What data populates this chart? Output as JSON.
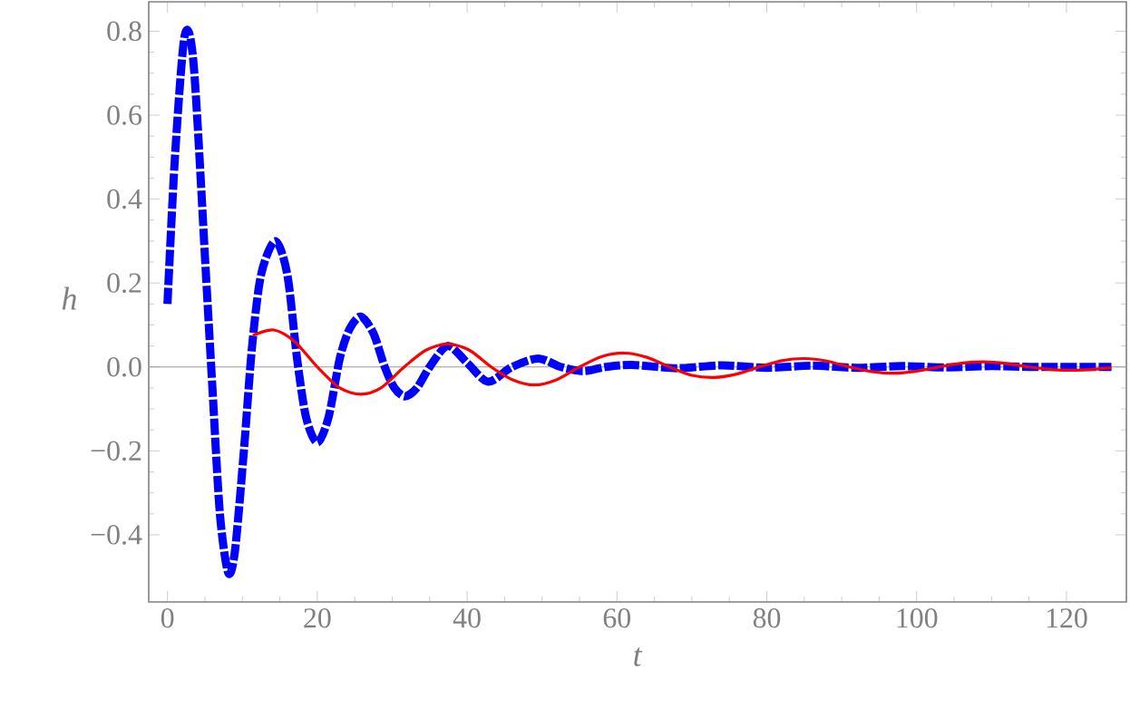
{
  "chart_data": {
    "type": "line",
    "xlabel": "*t*",
    "ylabel": "*h*",
    "xlim": [
      -2.5,
      128
    ],
    "ylim": [
      -0.56,
      0.87
    ],
    "xticks": [
      0,
      20,
      40,
      60,
      80,
      100,
      120
    ],
    "yticks": [
      {
        "value": -0.4,
        "label": "−0.4"
      },
      {
        "value": -0.2,
        "label": "−0.2"
      },
      {
        "value": 0,
        "label": "0.0"
      },
      {
        "value": 0.2,
        "label": "0.2"
      },
      {
        "value": 0.4,
        "label": "0.4"
      },
      {
        "value": 0.6,
        "label": "0.6"
      },
      {
        "value": 0.8,
        "label": "0.8"
      }
    ],
    "ref_lines": [
      {
        "axis": "y",
        "value": 0,
        "color": "#999999"
      }
    ],
    "grid": false,
    "marker": "none",
    "series": [
      {
        "color": "#0000ff",
        "line_style": "dashed",
        "x": [
          0,
          1,
          2.3,
          3.5,
          5.2,
          6,
          7,
          8.1,
          9,
          10.2,
          11.3,
          12.5,
          14.4,
          16,
          17.3,
          18.5,
          20,
          21.5,
          23,
          24.3,
          25.8,
          27.5,
          29,
          30.3,
          31.7,
          33.3,
          35,
          37.4,
          40,
          42.8,
          46,
          49.5,
          52.5,
          55.5,
          58.5,
          62,
          68,
          74,
          80,
          86,
          92,
          98,
          104,
          110,
          116,
          126
        ],
        "values": [
          0.15,
          0.5,
          0.79,
          0.72,
          0.2,
          -0.05,
          -0.35,
          -0.49,
          -0.44,
          -0.2,
          0.05,
          0.22,
          0.3,
          0.22,
          0.02,
          -0.12,
          -0.18,
          -0.12,
          0.02,
          0.09,
          0.12,
          0.08,
          0,
          -0.05,
          -0.07,
          -0.05,
          0,
          0.05,
          0.01,
          -0.035,
          0,
          0.02,
          0,
          -0.01,
          0,
          0.005,
          -0.003,
          0.004,
          -0.002,
          0.003,
          -0.002,
          0.002,
          -0.001,
          0.002,
          0,
          0
        ]
      },
      {
        "color": "#ff0000",
        "line_style": "solid",
        "x": [
          11.4,
          14.2,
          17,
          20,
          23,
          25.8,
          28.5,
          31.6,
          34.5,
          37.4,
          40.3,
          43.2,
          46,
          49,
          52,
          55,
          58,
          61,
          64,
          67,
          70,
          73,
          76,
          79,
          82,
          85,
          88,
          91,
          94,
          97,
          100,
          103,
          106,
          109,
          112,
          115,
          118,
          121,
          124,
          126
        ],
        "values": [
          0.075,
          0.088,
          0.06,
          0,
          -0.05,
          -0.065,
          -0.05,
          0,
          0.04,
          0.055,
          0.04,
          0,
          -0.03,
          -0.043,
          -0.03,
          0,
          0.025,
          0.033,
          0.023,
          0,
          -0.02,
          -0.025,
          -0.017,
          0,
          0.015,
          0.02,
          0.014,
          0,
          -0.011,
          -0.015,
          -0.01,
          0,
          0.009,
          0.012,
          0.008,
          0,
          -0.006,
          -0.008,
          -0.005,
          -0.002
        ]
      }
    ]
  }
}
